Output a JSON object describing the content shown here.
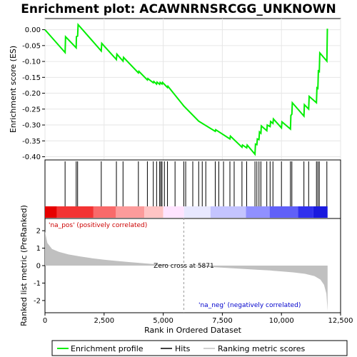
{
  "chart_data": {
    "title": "Enrichment plot: ACAWNRNSRCGG_UNKNOWN",
    "x_range": [
      0,
      12500
    ],
    "x_ticks": [
      0,
      2500,
      5000,
      7500,
      10000,
      12500
    ],
    "x_tick_labels": [
      "0",
      "2,500",
      "5,000",
      "7,500",
      "10,000",
      "12,500"
    ],
    "xlabel": "Rank in Ordered Dataset",
    "dataset_size": 11950,
    "es_panel": {
      "type": "line",
      "ylabel": "Enrichment score (ES)",
      "ylim": [
        -0.41,
        0.035
      ],
      "y_ticks": [
        0.0,
        -0.05,
        -0.1,
        -0.15,
        -0.2,
        -0.25,
        -0.3,
        -0.35,
        -0.4
      ],
      "y_tick_labels": [
        "0.00",
        "-0.05",
        "-0.10",
        "-0.15",
        "-0.20",
        "-0.25",
        "-0.30",
        "-0.35",
        "-0.40"
      ],
      "line_color": "#00ee00",
      "grid": true,
      "profile": [
        [
          0,
          0.0
        ],
        [
          850,
          -0.072
        ],
        [
          870,
          -0.022
        ],
        [
          1320,
          -0.057
        ],
        [
          1330,
          -0.022
        ],
        [
          1380,
          -0.02
        ],
        [
          1400,
          0.016
        ],
        [
          2380,
          -0.067
        ],
        [
          2400,
          -0.043
        ],
        [
          3020,
          -0.094
        ],
        [
          3040,
          -0.077
        ],
        [
          3300,
          -0.099
        ],
        [
          3320,
          -0.087
        ],
        [
          3950,
          -0.136
        ],
        [
          3970,
          -0.131
        ],
        [
          4330,
          -0.158
        ],
        [
          4350,
          -0.154
        ],
        [
          4580,
          -0.167
        ],
        [
          4600,
          -0.163
        ],
        [
          4720,
          -0.171
        ],
        [
          4740,
          -0.165
        ],
        [
          4850,
          -0.172
        ],
        [
          4870,
          -0.166
        ],
        [
          4950,
          -0.171
        ],
        [
          4970,
          -0.166
        ],
        [
          5180,
          -0.182
        ],
        [
          5200,
          -0.178
        ],
        [
          5870,
          -0.24
        ],
        [
          6500,
          -0.288
        ],
        [
          7200,
          -0.32
        ],
        [
          7220,
          -0.315
        ],
        [
          7820,
          -0.344
        ],
        [
          7840,
          -0.335
        ],
        [
          8330,
          -0.37
        ],
        [
          8350,
          -0.363
        ],
        [
          8530,
          -0.372
        ],
        [
          8550,
          -0.363
        ],
        [
          8880,
          -0.392
        ],
        [
          8900,
          -0.36
        ],
        [
          8960,
          -0.362
        ],
        [
          8980,
          -0.344
        ],
        [
          9050,
          -0.346
        ],
        [
          9070,
          -0.322
        ],
        [
          9130,
          -0.326
        ],
        [
          9150,
          -0.303
        ],
        [
          9380,
          -0.318
        ],
        [
          9400,
          -0.3
        ],
        [
          9520,
          -0.305
        ],
        [
          9540,
          -0.289
        ],
        [
          9640,
          -0.295
        ],
        [
          9660,
          -0.281
        ],
        [
          10000,
          -0.309
        ],
        [
          10020,
          -0.29
        ],
        [
          10380,
          -0.313
        ],
        [
          10400,
          -0.27
        ],
        [
          10440,
          -0.266
        ],
        [
          10460,
          -0.23
        ],
        [
          10950,
          -0.272
        ],
        [
          10970,
          -0.236
        ],
        [
          11150,
          -0.25
        ],
        [
          11170,
          -0.21
        ],
        [
          11480,
          -0.23
        ],
        [
          11500,
          -0.183
        ],
        [
          11540,
          -0.185
        ],
        [
          11560,
          -0.13
        ],
        [
          11600,
          -0.132
        ],
        [
          11620,
          -0.073
        ],
        [
          11920,
          -0.099
        ],
        [
          11940,
          0.003
        ]
      ]
    },
    "hits_panel": {
      "hit_ranks": [
        850,
        1320,
        1380,
        2380,
        3020,
        3300,
        3950,
        4330,
        4580,
        4720,
        4850,
        4900,
        4950,
        5050,
        5180,
        5500,
        5870,
        5950,
        6250,
        6500,
        6650,
        6800,
        7200,
        7350,
        7550,
        7820,
        8000,
        8330,
        8530,
        8880,
        8960,
        9050,
        9130,
        9380,
        9520,
        9640,
        10000,
        10380,
        10440,
        10950,
        11150,
        11480,
        11540,
        11600,
        11920
      ],
      "bar_colors": [
        "#e60000",
        "#f33333",
        "#f96a6a",
        "#fc9b9b",
        "#ffc4c4",
        "#ffe4ff",
        "#e8e8ff",
        "#c4c4ff",
        "#9090ff",
        "#6060f8",
        "#3030ee",
        "#1a1adf"
      ],
      "bar_breaks": [
        0,
        500,
        2050,
        3000,
        4200,
        5000,
        5880,
        7000,
        8500,
        9500,
        10700,
        11350,
        11950
      ]
    },
    "metric_panel": {
      "type": "area",
      "ylabel": "Ranked list metric (PreRanked)",
      "ylim": [
        -2.7,
        2.7
      ],
      "y_ticks": [
        2,
        1,
        0,
        -1,
        -2
      ],
      "y_tick_labels": [
        "2",
        "1",
        "0",
        "-1",
        "-2"
      ],
      "fill_color": "#c0c0c0",
      "curve": [
        [
          0,
          1.95
        ],
        [
          100,
          1.3
        ],
        [
          300,
          0.95
        ],
        [
          600,
          0.78
        ],
        [
          1000,
          0.64
        ],
        [
          1500,
          0.52
        ],
        [
          2000,
          0.42
        ],
        [
          2500,
          0.34
        ],
        [
          3000,
          0.27
        ],
        [
          3500,
          0.21
        ],
        [
          4000,
          0.15
        ],
        [
          4500,
          0.1
        ],
        [
          5000,
          0.06
        ],
        [
          5500,
          0.02
        ],
        [
          5871,
          0.0
        ],
        [
          6500,
          -0.04
        ],
        [
          7000,
          -0.08
        ],
        [
          7500,
          -0.12
        ],
        [
          8000,
          -0.16
        ],
        [
          8500,
          -0.2
        ],
        [
          9000,
          -0.24
        ],
        [
          9500,
          -0.28
        ],
        [
          10000,
          -0.33
        ],
        [
          10500,
          -0.39
        ],
        [
          11000,
          -0.47
        ],
        [
          11400,
          -0.6
        ],
        [
          11650,
          -0.8
        ],
        [
          11800,
          -1.1
        ],
        [
          11900,
          -1.6
        ],
        [
          11950,
          -2.6
        ]
      ],
      "zero_cross_rank": 5871,
      "zero_cross_label": "Zero cross at 5871",
      "pos_label": "'na_pos' (positively correlated)",
      "pos_color": "#cc0000",
      "neg_label": "'na_neg' (negatively correlated)",
      "neg_color": "#0000cc"
    },
    "legend": [
      {
        "label": "Enrichment profile",
        "color": "#00ee00",
        "kind": "line"
      },
      {
        "label": "Hits",
        "color": "#000000",
        "kind": "line"
      },
      {
        "label": "Ranking metric scores",
        "color": "#c0c0c0",
        "kind": "line"
      }
    ]
  }
}
